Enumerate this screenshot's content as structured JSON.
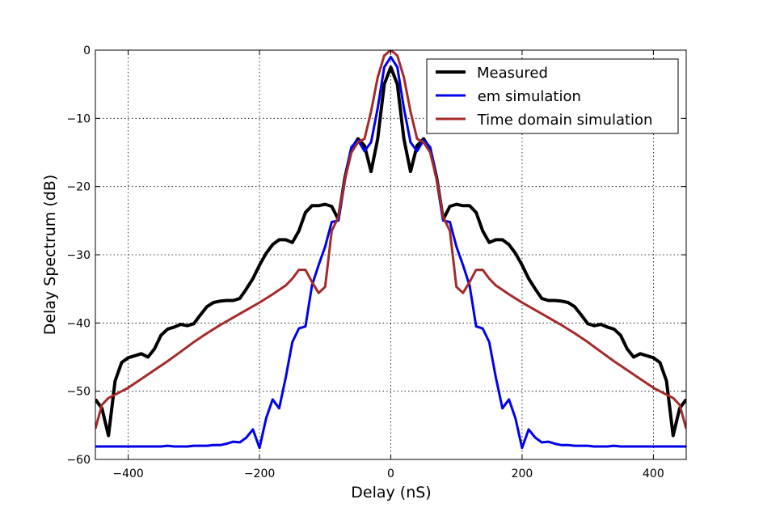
{
  "chart_data": {
    "type": "line",
    "xlabel": "Delay (nS)",
    "ylabel": "Delay Spectrum (dB)",
    "xlim": [
      -450,
      450
    ],
    "ylim": [
      -60,
      0
    ],
    "xticks": [
      -400,
      -200,
      0,
      200,
      400
    ],
    "xtick_labels": [
      "−400",
      "−200",
      "0",
      "200",
      "400"
    ],
    "yticks": [
      0,
      -10,
      -20,
      -30,
      -40,
      -50,
      -60
    ],
    "ytick_labels": [
      "0",
      "−10",
      "−20",
      "−30",
      "−40",
      "−50",
      "−60"
    ],
    "grid": true,
    "legend_position": "top-right",
    "series": [
      {
        "name": "Measured",
        "color": "#000000",
        "x": [
          -450,
          -440,
          -430,
          -420,
          -410,
          -400,
          -390,
          -380,
          -370,
          -360,
          -350,
          -340,
          -330,
          -320,
          -310,
          -300,
          -290,
          -280,
          -270,
          -260,
          -250,
          -240,
          -230,
          -220,
          -210,
          -200,
          -190,
          -180,
          -170,
          -160,
          -150,
          -140,
          -130,
          -120,
          -110,
          -100,
          -90,
          -80,
          -70,
          -60,
          -50,
          -40,
          -30,
          -20,
          -10,
          0,
          10,
          20,
          30,
          40,
          50,
          60,
          70,
          80,
          90,
          100,
          110,
          120,
          130,
          140,
          150,
          160,
          170,
          180,
          190,
          200,
          210,
          220,
          230,
          240,
          250,
          260,
          270,
          280,
          290,
          300,
          310,
          320,
          330,
          340,
          350,
          360,
          370,
          380,
          390,
          400,
          410,
          420,
          430,
          440,
          450
        ],
        "y": [
          -51.2,
          -52.5,
          -56.5,
          -48.5,
          -45.8,
          -45.1,
          -44.8,
          -44.5,
          -45.0,
          -43.8,
          -41.8,
          -40.9,
          -40.6,
          -40.2,
          -40.4,
          -40.1,
          -38.8,
          -37.6,
          -37.0,
          -36.8,
          -36.7,
          -36.7,
          -36.4,
          -35.0,
          -33.5,
          -31.5,
          -29.8,
          -28.5,
          -27.8,
          -27.8,
          -28.2,
          -26.5,
          -23.8,
          -22.8,
          -22.8,
          -22.6,
          -22.9,
          -24.8,
          -18.8,
          -14.5,
          -13.0,
          -14.0,
          -17.8,
          -13.0,
          -5.0,
          -2.5,
          -5.0,
          -13.0,
          -17.8,
          -14.0,
          -13.0,
          -14.5,
          -18.8,
          -24.8,
          -22.9,
          -22.6,
          -22.8,
          -22.8,
          -23.8,
          -26.5,
          -28.2,
          -27.8,
          -27.8,
          -28.5,
          -29.8,
          -31.5,
          -33.5,
          -35.0,
          -36.4,
          -36.7,
          -36.7,
          -36.8,
          -37.0,
          -37.6,
          -38.8,
          -40.1,
          -40.4,
          -40.2,
          -40.6,
          -40.9,
          -41.8,
          -43.8,
          -45.0,
          -44.5,
          -44.8,
          -45.1,
          -45.8,
          -48.5,
          -56.5,
          -52.5,
          -51.2
        ]
      },
      {
        "name": " em simulation",
        "color": "#0000ee",
        "x": [
          -450,
          -440,
          -430,
          -420,
          -410,
          -400,
          -390,
          -380,
          -370,
          -360,
          -350,
          -340,
          -330,
          -320,
          -310,
          -300,
          -290,
          -280,
          -270,
          -260,
          -250,
          -240,
          -230,
          -220,
          -210,
          -200,
          -190,
          -180,
          -170,
          -160,
          -150,
          -140,
          -130,
          -120,
          -110,
          -100,
          -90,
          -80,
          -70,
          -60,
          -50,
          -40,
          -30,
          -20,
          -10,
          0,
          10,
          20,
          30,
          40,
          50,
          60,
          70,
          80,
          90,
          100,
          110,
          120,
          130,
          140,
          150,
          160,
          170,
          180,
          190,
          200,
          210,
          220,
          230,
          240,
          250,
          260,
          270,
          280,
          290,
          300,
          310,
          320,
          330,
          340,
          350,
          360,
          370,
          380,
          390,
          400,
          410,
          420,
          430,
          440,
          450
        ],
        "y": [
          -58.1,
          -58.1,
          -58.1,
          -58.1,
          -58.1,
          -58.1,
          -58.1,
          -58.1,
          -58.1,
          -58.1,
          -58.1,
          -58.0,
          -58.1,
          -58.1,
          -58.1,
          -58.0,
          -58.0,
          -58.0,
          -57.9,
          -57.9,
          -57.7,
          -57.4,
          -57.5,
          -56.8,
          -55.6,
          -58.3,
          -54.0,
          -51.2,
          -52.5,
          -48.0,
          -42.8,
          -40.8,
          -40.5,
          -34.5,
          -31.5,
          -28.8,
          -25.2,
          -25.0,
          -19.0,
          -14.2,
          -13.2,
          -14.8,
          -13.5,
          -8.5,
          -2.5,
          -1.0,
          -2.5,
          -8.5,
          -13.5,
          -14.8,
          -13.2,
          -14.2,
          -19.0,
          -25.0,
          -25.2,
          -28.8,
          -31.5,
          -34.5,
          -40.5,
          -40.8,
          -42.8,
          -48.0,
          -52.5,
          -51.2,
          -54.0,
          -58.3,
          -55.6,
          -56.8,
          -57.5,
          -57.4,
          -57.7,
          -57.9,
          -57.9,
          -58.0,
          -58.0,
          -58.0,
          -58.1,
          -58.1,
          -58.1,
          -58.0,
          -58.1,
          -58.1,
          -58.1,
          -58.1,
          -58.1,
          -58.1,
          -58.1,
          -58.1,
          -58.1,
          -58.1,
          -58.1
        ]
      },
      {
        "name": " Time domain simulation",
        "color": "#a52a2a",
        "x": [
          -450,
          -440,
          -430,
          -420,
          -400,
          -380,
          -360,
          -340,
          -320,
          -300,
          -280,
          -260,
          -240,
          -220,
          -200,
          -180,
          -160,
          -150,
          -140,
          -130,
          -120,
          -110,
          -100,
          -90,
          -80,
          -70,
          -60,
          -50,
          -40,
          -30,
          -20,
          -10,
          0,
          10,
          20,
          30,
          40,
          50,
          60,
          70,
          80,
          90,
          100,
          110,
          120,
          130,
          140,
          150,
          160,
          180,
          200,
          220,
          240,
          260,
          280,
          300,
          320,
          340,
          360,
          380,
          400,
          420,
          430,
          440,
          450
        ],
        "y": [
          -55.5,
          -52.0,
          -51.0,
          -50.5,
          -49.5,
          -48.2,
          -46.9,
          -45.6,
          -44.2,
          -42.8,
          -41.5,
          -40.3,
          -39.2,
          -38.1,
          -37.0,
          -35.8,
          -34.5,
          -33.5,
          -32.2,
          -32.2,
          -34.0,
          -35.6,
          -34.7,
          -26.5,
          -24.5,
          -19.0,
          -15.0,
          -13.5,
          -13.0,
          -9.0,
          -4.0,
          -0.8,
          0.0,
          -0.8,
          -4.0,
          -9.0,
          -13.0,
          -13.5,
          -15.0,
          -19.0,
          -24.5,
          -26.5,
          -34.7,
          -35.6,
          -34.0,
          -32.2,
          -32.2,
          -33.5,
          -34.5,
          -35.8,
          -37.0,
          -38.1,
          -39.2,
          -40.3,
          -41.5,
          -42.8,
          -44.2,
          -45.6,
          -46.9,
          -48.2,
          -49.5,
          -50.5,
          -51.0,
          -52.0,
          -55.5
        ]
      }
    ]
  }
}
